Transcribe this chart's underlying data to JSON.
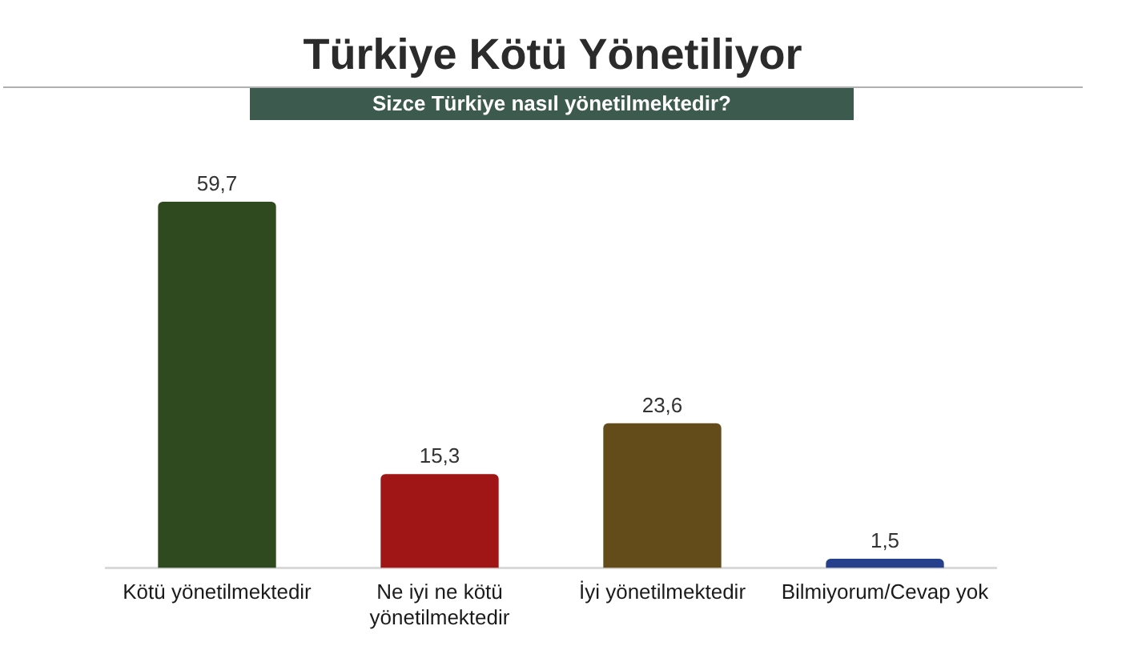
{
  "chart_data": {
    "type": "bar",
    "title": "Türkiye Kötü Yönetiliyor",
    "subtitle": "Sizce Türkiye nasıl yönetilmektedir?",
    "categories": [
      "Kötü yönetilmektedir",
      "Ne iyi ne kötü yönetilmektedir",
      "İyi yönetilmektedir",
      "Bilmiyorum/Cevap yok"
    ],
    "values": [
      59.7,
      15.3,
      23.6,
      1.5
    ],
    "colors": [
      "#2e4a1e",
      "#a01515",
      "#634c19",
      "#27408b"
    ],
    "value_labels": [
      "59,7",
      "15,3",
      "23,6",
      "1,5"
    ]
  }
}
